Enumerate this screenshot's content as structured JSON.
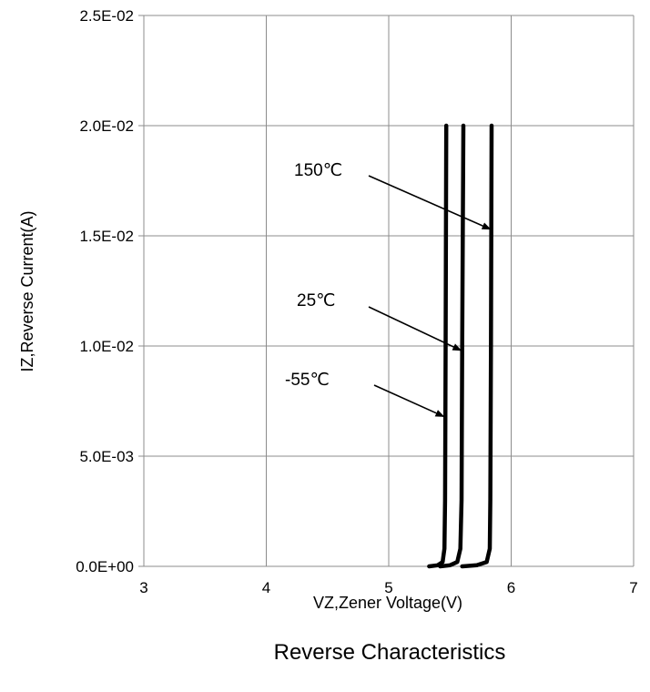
{
  "chart_data": {
    "type": "line",
    "title": "",
    "caption": "Reverse Characteristics",
    "xlabel": "VZ,Zener Voltage(V)",
    "ylabel": "IZ,Reverse Current(A)",
    "xlim": [
      3,
      7
    ],
    "ylim": [
      0,
      0.025
    ],
    "x_ticks": [
      3,
      4,
      5,
      6,
      7
    ],
    "x_tick_labels": [
      "3",
      "4",
      "5",
      "6",
      "7"
    ],
    "y_ticks": [
      0,
      0.005,
      0.01,
      0.015,
      0.02,
      0.025
    ],
    "y_tick_labels": [
      "0.0E+00",
      "5.0E-03",
      "1.0E-02",
      "1.5E-02",
      "2.0E-02",
      "2.5E-02"
    ],
    "grid": true,
    "legend": "none",
    "line_color": "#000000",
    "grid_color": "#8c8c8c",
    "series": [
      {
        "name": "-55℃",
        "points": [
          [
            5.33,
            0.0
          ],
          [
            5.4,
            5e-05
          ],
          [
            5.44,
            0.0002
          ],
          [
            5.455,
            0.0008
          ],
          [
            5.46,
            0.003
          ],
          [
            5.465,
            0.01
          ],
          [
            5.47,
            0.02
          ]
        ]
      },
      {
        "name": "25℃",
        "points": [
          [
            5.42,
            0.0
          ],
          [
            5.5,
            5e-05
          ],
          [
            5.56,
            0.0002
          ],
          [
            5.585,
            0.0008
          ],
          [
            5.595,
            0.003
          ],
          [
            5.6,
            0.01
          ],
          [
            5.61,
            0.02
          ]
        ]
      },
      {
        "name": "150℃",
        "points": [
          [
            5.6,
            0.0
          ],
          [
            5.72,
            5e-05
          ],
          [
            5.8,
            0.0002
          ],
          [
            5.825,
            0.0008
          ],
          [
            5.83,
            0.003
          ],
          [
            5.835,
            0.01
          ],
          [
            5.84,
            0.02
          ]
        ]
      }
    ],
    "annotations": [
      {
        "text": "150℃",
        "arrow_to": [
          5.83,
          0.0153
        ]
      },
      {
        "text": "25℃",
        "arrow_to": [
          5.59,
          0.0098
        ]
      },
      {
        "text": "-55℃",
        "arrow_to": [
          5.45,
          0.0068
        ]
      }
    ]
  }
}
